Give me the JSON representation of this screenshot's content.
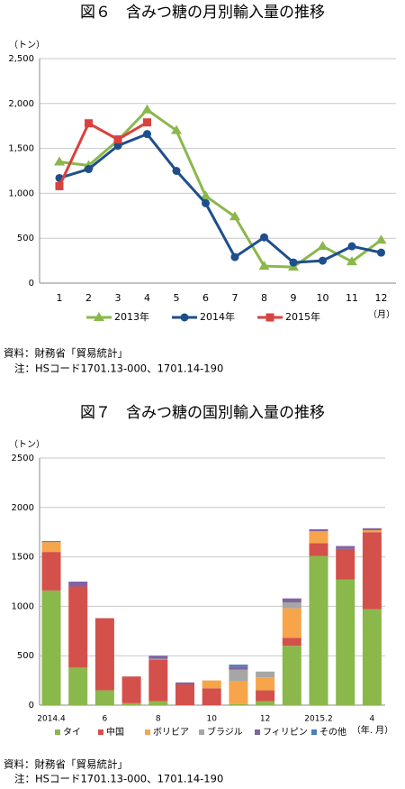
{
  "chart_data": [
    {
      "type": "line",
      "title": "図６　含みつ糖の月別輸入量の推移",
      "y_unit": "（トン）",
      "x_unit": "（月）",
      "categories": [
        "1",
        "2",
        "3",
        "4",
        "5",
        "6",
        "7",
        "8",
        "9",
        "10",
        "11",
        "12"
      ],
      "ylim": [
        0,
        2500
      ],
      "yticks": [
        0,
        500,
        {
          "value": 1000,
          "label": "1,000"
        },
        {
          "value": 1500,
          "label": "1,500"
        },
        {
          "value": 2000,
          "label": "2,000"
        },
        {
          "value": 2500,
          "label": "2,500"
        }
      ],
      "grid": true,
      "series": [
        {
          "name": "2013年",
          "color": "#8ab84b",
          "marker": "triangle",
          "values": [
            1350,
            1310,
            1590,
            1930,
            1700,
            970,
            740,
            190,
            180,
            410,
            240,
            480
          ]
        },
        {
          "name": "2014年",
          "color": "#1f4e8c",
          "marker": "circle",
          "values": [
            1170,
            1270,
            1530,
            1660,
            1250,
            890,
            290,
            510,
            230,
            250,
            410,
            340
          ]
        },
        {
          "name": "2015年",
          "color": "#d9423f",
          "marker": "square",
          "values": [
            1080,
            1780,
            1600,
            1790,
            null,
            null,
            null,
            null,
            null,
            null,
            null,
            null
          ]
        }
      ],
      "source": "資料：財務省「貿易統計」",
      "note": "注：HSコード1701.13-000、1701.14-190"
    },
    {
      "type": "stacked_bar",
      "title": "図７　含みつ糖の国別輸入量の推移",
      "y_unit": "（トン）",
      "x_unit": "（年. 月）",
      "categories": [
        "2014.4",
        null,
        "6",
        null,
        "8",
        null,
        "10",
        null,
        "12",
        null,
        "2015.2",
        null,
        "4"
      ],
      "ylim": [
        0,
        2500
      ],
      "yticks": [
        0,
        500,
        1000,
        1500,
        2000,
        2500
      ],
      "grid": true,
      "series": [
        {
          "name": "タイ",
          "color": "#8ab84b",
          "values": [
            1160,
            380,
            150,
            20,
            40,
            0,
            0,
            10,
            40,
            600,
            1510,
            1270,
            970
          ]
        },
        {
          "name": "中国",
          "color": "#d4504a",
          "values": [
            390,
            820,
            730,
            270,
            420,
            210,
            170,
            0,
            110,
            80,
            130,
            310,
            780
          ]
        },
        {
          "name": "ボリビア",
          "color": "#f6a54a",
          "values": [
            100,
            0,
            0,
            0,
            0,
            0,
            80,
            230,
            130,
            300,
            120,
            0,
            20
          ]
        },
        {
          "name": "ブラジル",
          "color": "#a6a6a6",
          "values": [
            0,
            0,
            0,
            0,
            10,
            0,
            0,
            120,
            60,
            60,
            0,
            0,
            0
          ]
        },
        {
          "name": "フィリピン",
          "color": "#8064a2",
          "values": [
            10,
            50,
            0,
            0,
            30,
            20,
            0,
            30,
            0,
            40,
            20,
            30,
            20
          ]
        },
        {
          "name": "その他",
          "color": "#4a7ebb",
          "values": [
            0,
            0,
            0,
            0,
            0,
            0,
            0,
            20,
            0,
            0,
            0,
            0,
            0
          ]
        }
      ],
      "source": "資料：財務省「貿易統計」",
      "note": "注：HSコード1701.13-000、1701.14-190"
    }
  ]
}
